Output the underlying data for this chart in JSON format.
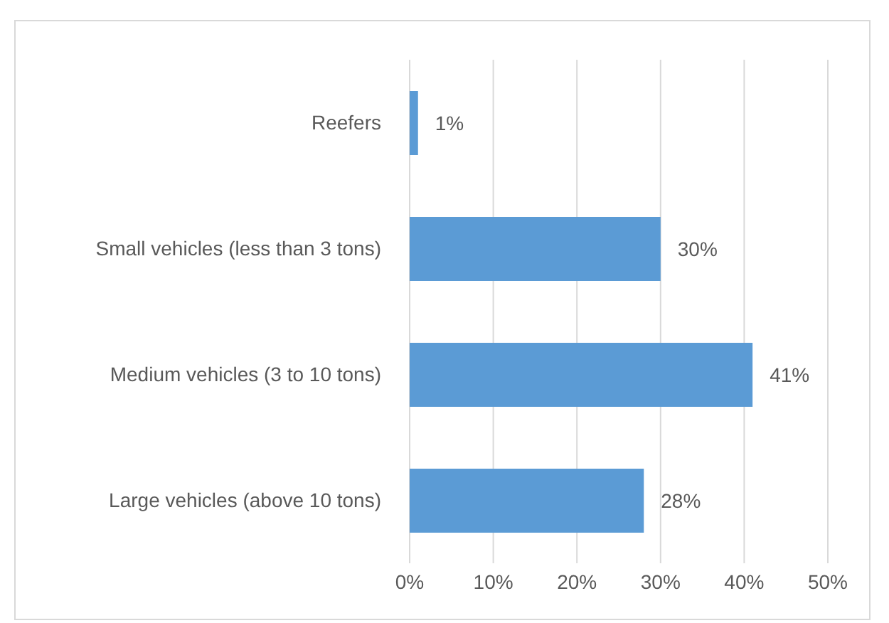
{
  "chart_data": {
    "type": "bar",
    "orientation": "horizontal",
    "categories": [
      "Reefers",
      "Small vehicles (less than 3 tons)",
      "Medium vehicles (3 to 10 tons)",
      "Large vehicles (above 10 tons)"
    ],
    "values": [
      1,
      30,
      41,
      28
    ],
    "value_labels": [
      "1%",
      "30%",
      "41%",
      "28%"
    ],
    "color": "#5b9bd5",
    "xlim": [
      0,
      50
    ],
    "xticks": [
      {
        "value": 0,
        "label": "0%"
      },
      {
        "value": 10,
        "label": "10%"
      },
      {
        "value": 20,
        "label": "20%"
      },
      {
        "value": 30,
        "label": "30%"
      },
      {
        "value": 40,
        "label": "40%"
      },
      {
        "value": 50,
        "label": "50%"
      }
    ],
    "grid": "x",
    "legend": false
  }
}
